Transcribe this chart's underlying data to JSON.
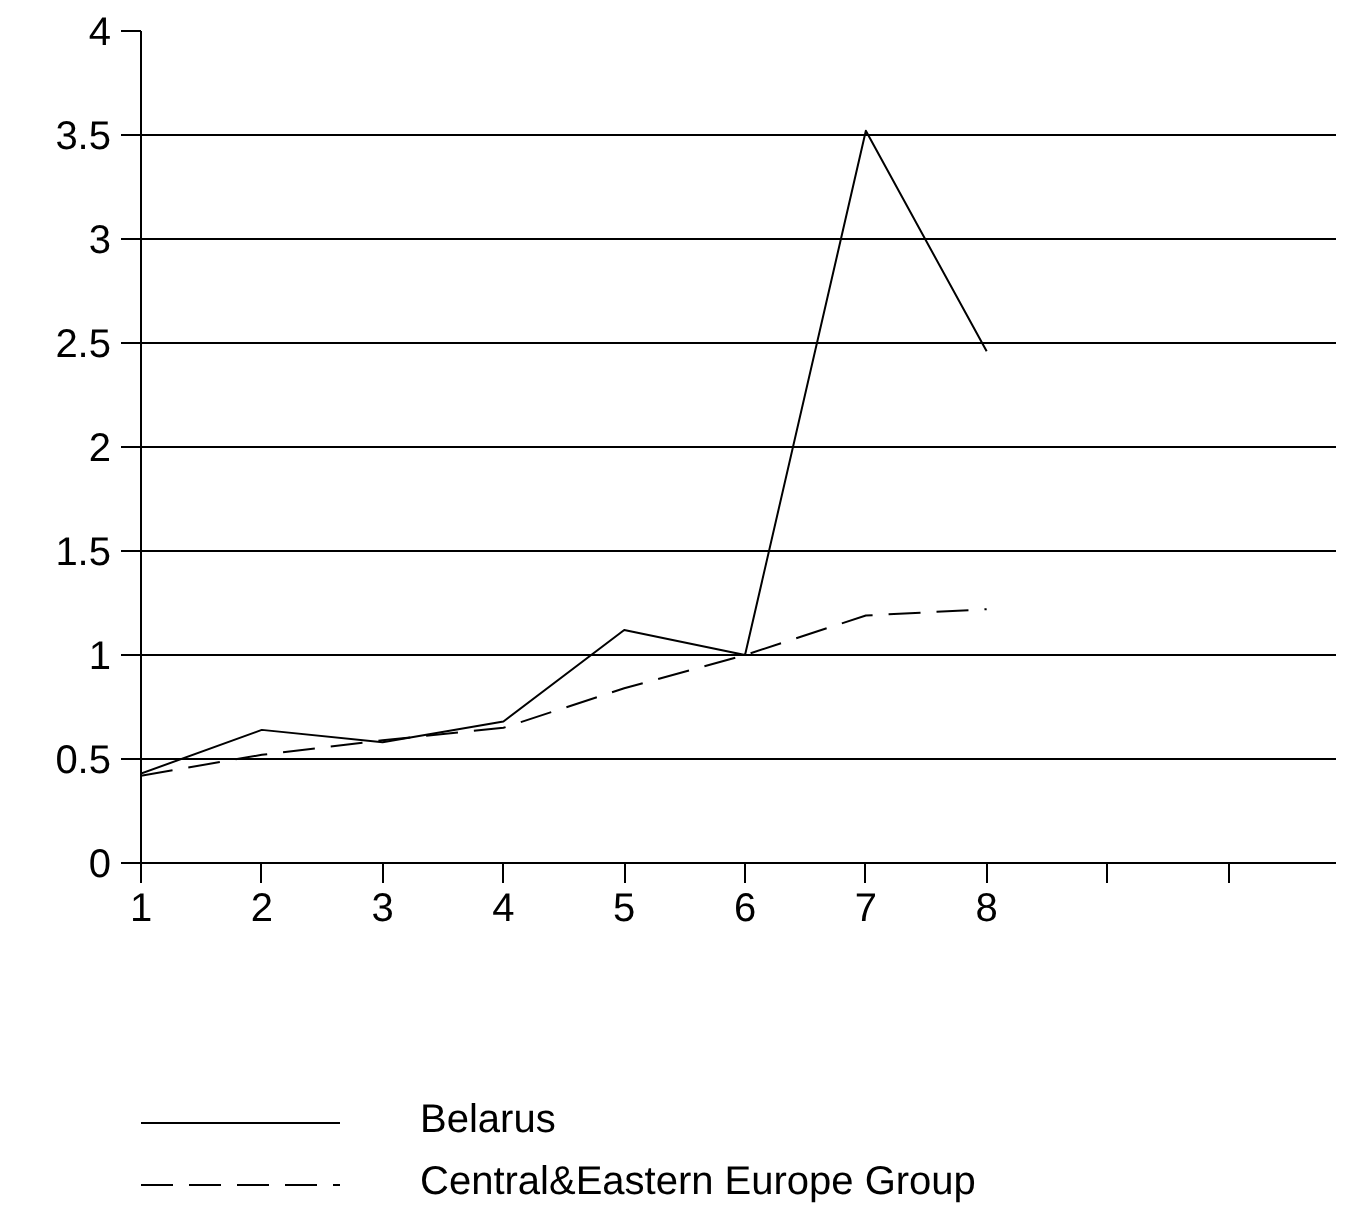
{
  "chart_data": {
    "type": "line",
    "x": [
      1,
      2,
      3,
      4,
      5,
      6,
      7,
      8
    ],
    "series": [
      {
        "name": "Belarus",
        "color": "#000000",
        "line_style": "solid",
        "values": [
          0.43,
          0.64,
          0.58,
          0.68,
          1.12,
          1.0,
          3.52,
          2.46
        ]
      },
      {
        "name": "Central&Eastern Europe Group",
        "color": "#000000",
        "line_style": "dashed",
        "values": [
          0.42,
          0.52,
          0.59,
          0.65,
          0.84,
          1.0,
          1.19,
          1.22
        ]
      }
    ],
    "xlim": [
      1,
      10.9
    ],
    "xticks": [
      1,
      2,
      3,
      4,
      5,
      6,
      7,
      8,
      {
        "value": 9,
        "label": null
      },
      {
        "value": 10,
        "label": null
      }
    ],
    "ylim": [
      0,
      4
    ],
    "yticks": [
      0,
      0.5,
      1,
      1.5,
      2,
      2.5,
      3,
      3.5,
      4
    ],
    "grid": "y",
    "legend": "bottom",
    "marker": "none"
  }
}
